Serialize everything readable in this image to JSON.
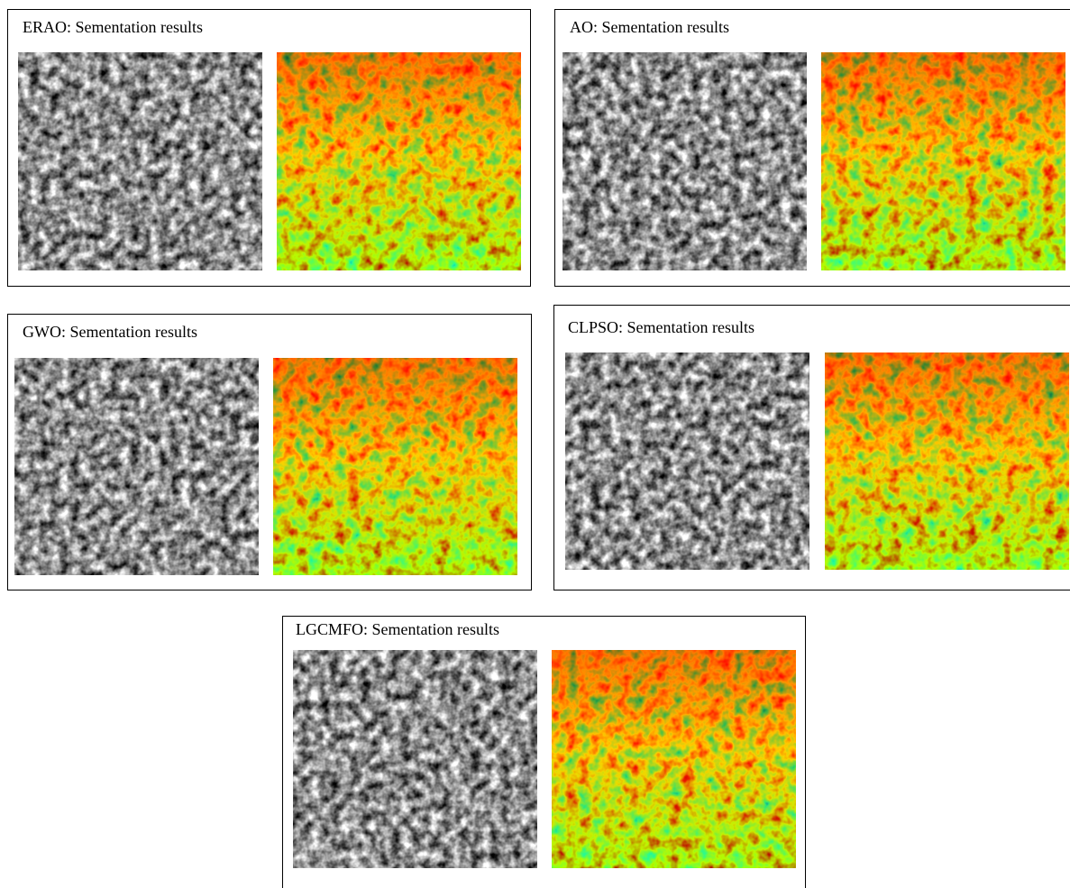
{
  "panels": [
    {
      "title": "ERAO: Sementation results"
    },
    {
      "title": "AO: Sementation results"
    },
    {
      "title": "GWO: Sementation results"
    },
    {
      "title": "CLPSO: Sementation results"
    },
    {
      "title": "LGCMFO: Sementation results"
    }
  ]
}
